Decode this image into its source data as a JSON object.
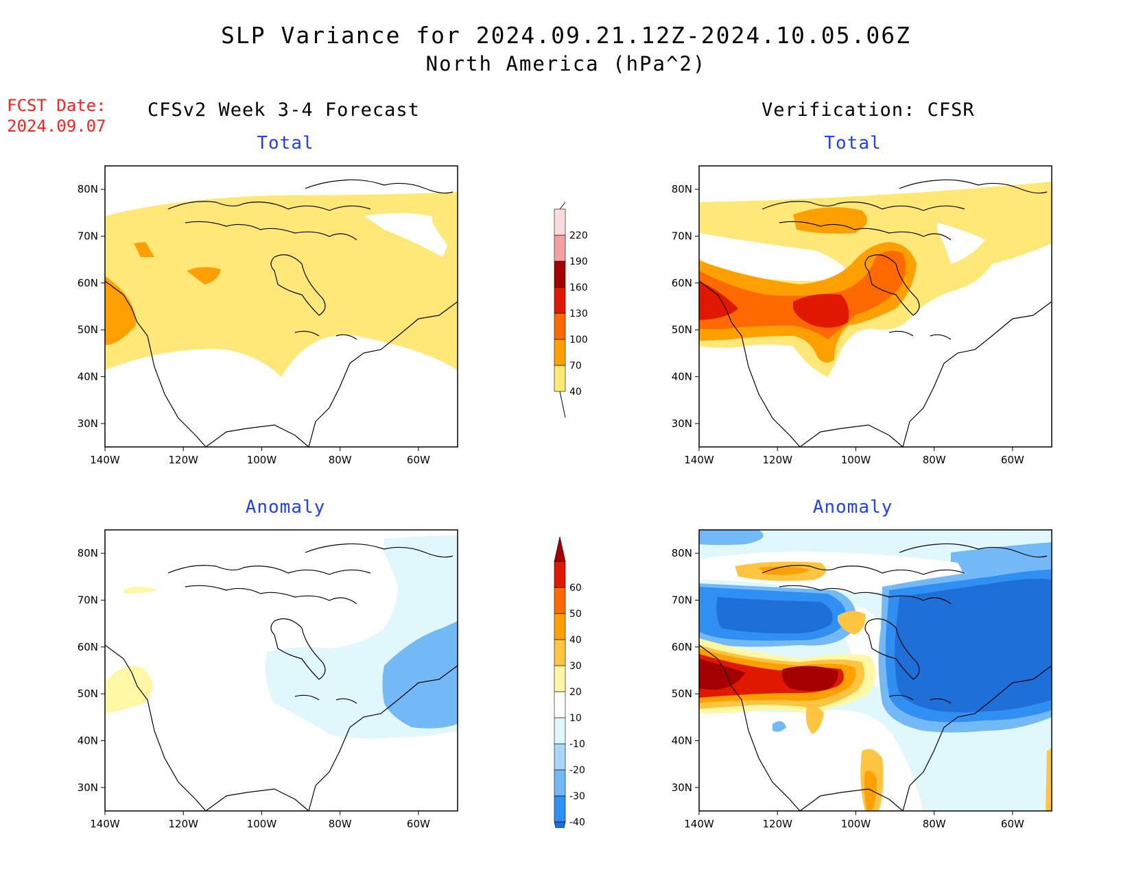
{
  "title": "SLP Variance for 2024.09.21.12Z-2024.10.05.06Z",
  "subtitle": "North America (hPa^2)",
  "fcst_date": {
    "label": "FCST Date:",
    "value": "2024.09.07"
  },
  "columns": {
    "left": "CFSv2 Week 3-4 Forecast",
    "right": "Verification: CFSR"
  },
  "panels": {
    "fc_total": {
      "title": "Total"
    },
    "vf_total": {
      "title": "Total"
    },
    "fc_anom": {
      "title": "Anomaly"
    },
    "vf_anom": {
      "title": "Anomaly"
    }
  },
  "axes": {
    "lat_ticks": [
      "80N",
      "70N",
      "60N",
      "50N",
      "40N",
      "30N"
    ],
    "lon_ticks": [
      "140W",
      "120W",
      "100W",
      "80W",
      "60W"
    ]
  },
  "colorbar_total": {
    "levels": [
      "40",
      "70",
      "100",
      "130",
      "160",
      "190",
      "220"
    ],
    "colors": [
      "#ffe878",
      "#ffa000",
      "#ff6a00",
      "#e11800",
      "#a50000",
      "#f4a0a0",
      "#fbdcdc"
    ]
  },
  "colorbar_anomaly": {
    "levels": [
      "-40",
      "-30",
      "-20",
      "-10",
      "10",
      "20",
      "30",
      "40",
      "50",
      "60"
    ],
    "colors": [
      "#1f6fd9",
      "#2f8ff2",
      "#73b9f5",
      "#aad6f9",
      "#e0f8fb",
      "#ffffff",
      "#fff6a6",
      "#ffc540",
      "#ffa000",
      "#ff6a00",
      "#e11800",
      "#a50000"
    ]
  },
  "colors": {
    "title_blue": "#1f3fff",
    "fcst_red": "#ff2020"
  }
}
